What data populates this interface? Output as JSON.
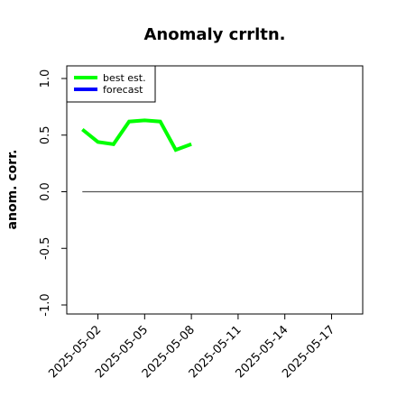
{
  "chart_data": {
    "type": "line",
    "title": "Anomaly crrltn.",
    "xlabel": "",
    "ylabel": "anom. corr.",
    "ylim": [
      -1.0,
      1.0
    ],
    "xlim": [
      "2025-04-30",
      "2025-05-19"
    ],
    "y_ticks": [
      "-1.0",
      "-0.5",
      "0.0",
      "0.5",
      "1.0"
    ],
    "x_ticks": [
      "2025-05-02",
      "2025-05-05",
      "2025-05-08",
      "2025-05-11",
      "2025-05-14",
      "2025-05-17"
    ],
    "highlighted_x_tick": "2025-05-08",
    "highlight_color": "#228b22",
    "reference_line": {
      "y": 0.0,
      "from": "2025-05-01",
      "to": "2025-05-19",
      "color": "#555555"
    },
    "legend": {
      "position": "top-left"
    },
    "series": [
      {
        "name": "best est.",
        "color": "#00ff00",
        "x": [
          "2025-05-01",
          "2025-05-02",
          "2025-05-03",
          "2025-05-04",
          "2025-05-05",
          "2025-05-06",
          "2025-05-07",
          "2025-05-08"
        ],
        "y": [
          0.55,
          0.44,
          0.42,
          0.62,
          0.63,
          0.62,
          0.37,
          0.42
        ]
      },
      {
        "name": "forecast",
        "color": "#0000ff",
        "x": [],
        "y": []
      }
    ]
  }
}
